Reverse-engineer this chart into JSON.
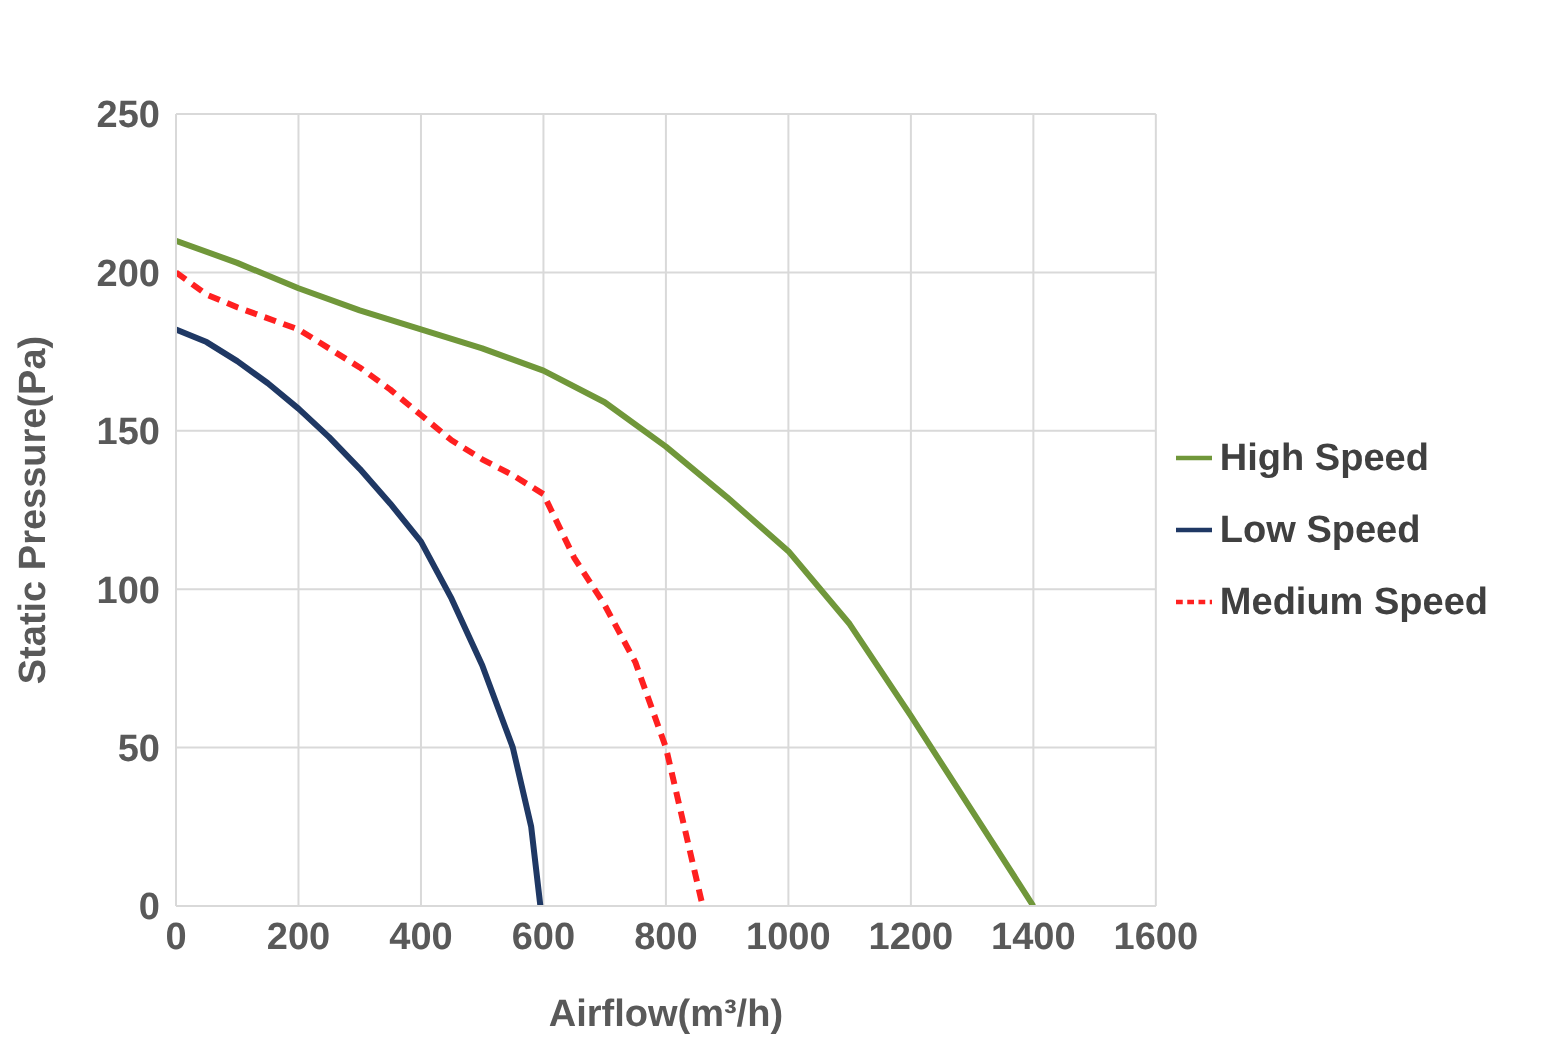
{
  "chart_data": {
    "type": "line",
    "xlabel": "Airflow(m³/h)",
    "ylabel": "Static Pressure(Pa)",
    "xlim": [
      0,
      1600
    ],
    "xticks": [
      0,
      200,
      400,
      600,
      800,
      1000,
      1200,
      1400,
      1600
    ],
    "ylim": [
      0,
      250
    ],
    "yticks": [
      0,
      50,
      100,
      150,
      200,
      250
    ],
    "grid": true,
    "legend": "right",
    "marker": "none",
    "series": [
      {
        "name": "Low Speed",
        "color": "#1f3864",
        "line_style": "solid",
        "x": [
          0,
          50,
          100,
          150,
          200,
          250,
          300,
          350,
          400,
          450,
          500,
          550,
          580,
          595
        ],
        "values": [
          182,
          178,
          172,
          165,
          157,
          148,
          138,
          127,
          115,
          97,
          76,
          50,
          25,
          0
        ]
      },
      {
        "name": "High Speed",
        "color": "#70973a",
        "line_style": "solid",
        "x": [
          0,
          100,
          200,
          300,
          400,
          500,
          600,
          700,
          800,
          900,
          1000,
          1100,
          1200,
          1300,
          1400
        ],
        "values": [
          210,
          203,
          195,
          188,
          182,
          176,
          169,
          159,
          145,
          129,
          112,
          89,
          60,
          30,
          0
        ]
      },
      {
        "name": "Medium Speed",
        "color": "#ff2020",
        "line_style": "dashed",
        "x": [
          0,
          50,
          100,
          200,
          250,
          300,
          350,
          400,
          450,
          500,
          550,
          600,
          650,
          700,
          750,
          800,
          830,
          860
        ],
        "values": [
          200,
          193,
          189,
          182,
          176,
          170,
          163,
          155,
          147,
          141,
          136,
          130,
          110,
          95,
          77,
          50,
          25,
          0
        ]
      }
    ]
  }
}
